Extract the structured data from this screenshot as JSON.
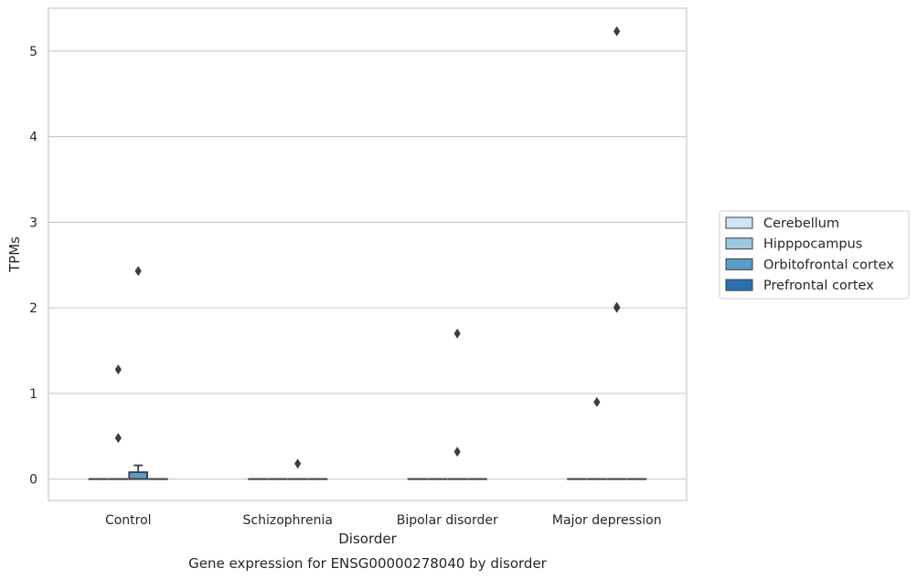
{
  "chart_data": {
    "type": "box",
    "caption": "Gene expression for ENSG00000278040 by disorder",
    "xlabel": "Disorder",
    "ylabel": "TPMs",
    "ylim": [
      -0.25,
      5.5
    ],
    "yticks": [
      0,
      1,
      2,
      3,
      4,
      5
    ],
    "categories": [
      "Control",
      "Schizophrenia",
      "Bipolar disorder",
      "Major depression"
    ],
    "grid": "horizontal",
    "legend_position": "right",
    "series": [
      {
        "name": "Cerebellum",
        "color": "#d2e3f3",
        "boxes": [
          {
            "q1": 0,
            "median": 0,
            "q3": 0,
            "whisker_low": 0,
            "whisker_high": 0,
            "outliers": []
          },
          {
            "q1": 0,
            "median": 0,
            "q3": 0,
            "whisker_low": 0,
            "whisker_high": 0,
            "outliers": []
          },
          {
            "q1": 0,
            "median": 0,
            "q3": 0,
            "whisker_low": 0,
            "whisker_high": 0,
            "outliers": []
          },
          {
            "q1": 0,
            "median": 0,
            "q3": 0,
            "whisker_low": 0,
            "whisker_high": 0,
            "outliers": []
          }
        ]
      },
      {
        "name": "Hipppocampus",
        "color": "#9ac8e0",
        "boxes": [
          {
            "q1": 0,
            "median": 0,
            "q3": 0,
            "whisker_low": 0,
            "whisker_high": 0,
            "outliers": [
              0.48,
              1.28
            ]
          },
          {
            "q1": 0,
            "median": 0,
            "q3": 0,
            "whisker_low": 0,
            "whisker_high": 0,
            "outliers": []
          },
          {
            "q1": 0,
            "median": 0,
            "q3": 0,
            "whisker_low": 0,
            "whisker_high": 0,
            "outliers": []
          },
          {
            "q1": 0,
            "median": 0,
            "q3": 0,
            "whisker_low": 0,
            "whisker_high": 0,
            "outliers": [
              0.9
            ]
          }
        ]
      },
      {
        "name": "Orbitofrontal cortex",
        "color": "#5a9dc8",
        "boxes": [
          {
            "q1": 0,
            "median": 0,
            "q3": 0.08,
            "whisker_low": 0,
            "whisker_high": 0.16,
            "outliers": [
              2.43
            ]
          },
          {
            "q1": 0,
            "median": 0,
            "q3": 0,
            "whisker_low": 0,
            "whisker_high": 0,
            "outliers": [
              0.18
            ]
          },
          {
            "q1": 0,
            "median": 0,
            "q3": 0,
            "whisker_low": 0,
            "whisker_high": 0,
            "outliers": [
              0.32,
              1.7
            ]
          },
          {
            "q1": 0,
            "median": 0,
            "q3": 0,
            "whisker_low": 0,
            "whisker_high": 0,
            "outliers": [
              2.0,
              2.01,
              5.23
            ]
          }
        ]
      },
      {
        "name": "Prefrontal cortex",
        "color": "#2a6fb0",
        "boxes": [
          {
            "q1": 0,
            "median": 0,
            "q3": 0,
            "whisker_low": 0,
            "whisker_high": 0,
            "outliers": []
          },
          {
            "q1": 0,
            "median": 0,
            "q3": 0,
            "whisker_low": 0,
            "whisker_high": 0,
            "outliers": []
          },
          {
            "q1": 0,
            "median": 0,
            "q3": 0,
            "whisker_low": 0,
            "whisker_high": 0,
            "outliers": []
          },
          {
            "q1": 0,
            "median": 0,
            "q3": 0,
            "whisker_low": 0,
            "whisker_high": 0,
            "outliers": []
          }
        ]
      }
    ]
  }
}
